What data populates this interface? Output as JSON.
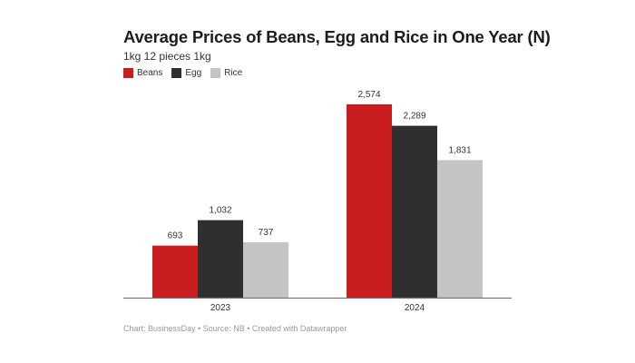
{
  "chart_data": {
    "type": "bar",
    "title": "Average Prices of Beans, Egg and Rice in One Year (N)",
    "subtitle": "1kg 12 pieces 1kg",
    "categories": [
      "2023",
      "2024"
    ],
    "series": [
      {
        "name": "Beans",
        "color": "#c91d1f",
        "values": [
          693,
          2574
        ],
        "labels": [
          "693",
          "2,574"
        ]
      },
      {
        "name": "Egg",
        "color": "#2f2f2f",
        "values": [
          1032,
          2289
        ],
        "labels": [
          "1,032",
          "2,289"
        ]
      },
      {
        "name": "Rice",
        "color": "#c4c4c4",
        "values": [
          737,
          1831
        ],
        "labels": [
          "737",
          "1,831"
        ]
      }
    ],
    "legend_position": "top-left",
    "grid": false,
    "footer": "Chart: BusinessDay • Source: NB • Created with Datawrapper"
  }
}
